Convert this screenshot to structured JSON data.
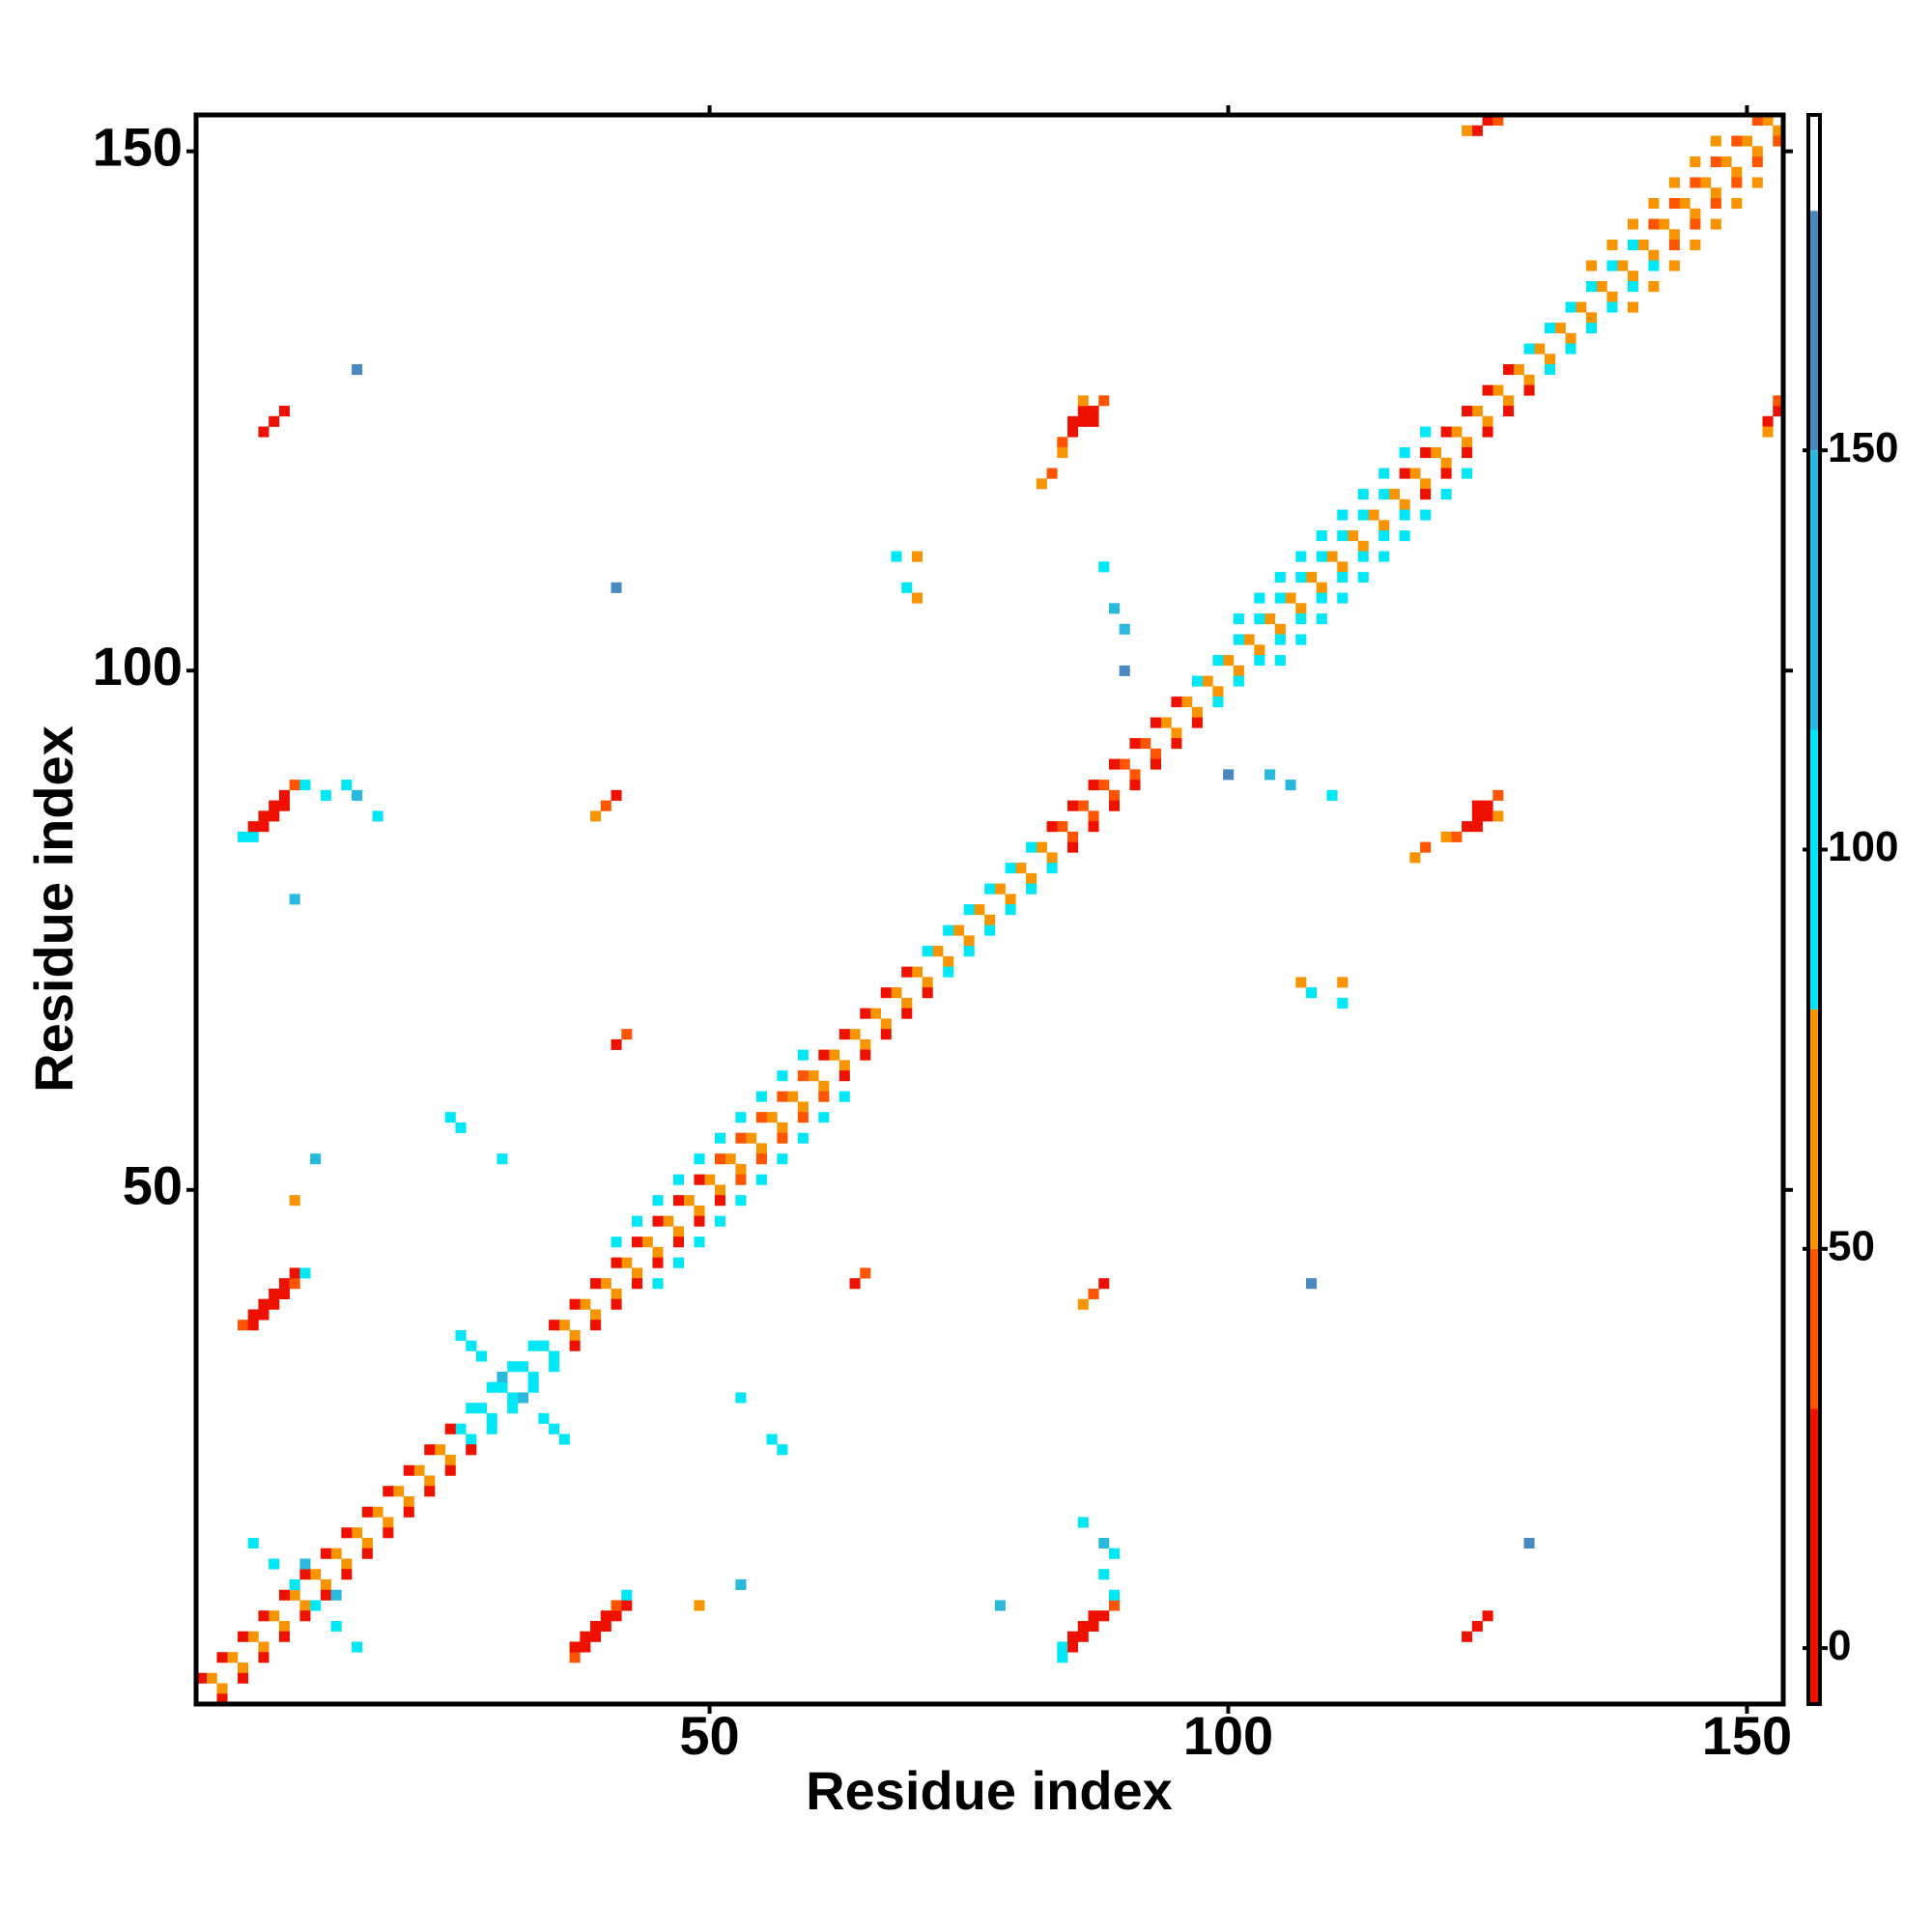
{
  "chart_data": {
    "type": "heatmap",
    "xlabel": "Residue index",
    "ylabel": "Residue index",
    "xlim": [
      0.5,
      153.5
    ],
    "ylim": [
      0.5,
      153.5
    ],
    "xticks": [
      50,
      100,
      150
    ],
    "yticks": [
      50,
      100,
      150
    ],
    "colorbar": {
      "lim": [
        -7,
        192
      ],
      "ticks": [
        0,
        50,
        100,
        150
      ],
      "bins": [
        {
          "from": -7,
          "to": 30,
          "color": "#ee1100"
        },
        {
          "from": 30,
          "to": 50,
          "color": "#ff5500"
        },
        {
          "from": 50,
          "to": 80,
          "color": "#f79400"
        },
        {
          "from": 80,
          "to": 115,
          "color": "#00e8f5"
        },
        {
          "from": 115,
          "to": 150,
          "color": "#2ab8dc"
        },
        {
          "from": 150,
          "to": 180,
          "color": "#4a88c0"
        },
        {
          "from": 180,
          "to": 192,
          "color": "#ffffff"
        }
      ]
    },
    "x": [
      2,
      4,
      6,
      8,
      10,
      12,
      14,
      16,
      18,
      20,
      22,
      24,
      26,
      28,
      30,
      32,
      34,
      36,
      38,
      40,
      42,
      44,
      46,
      48,
      50,
      52,
      54,
      56,
      58,
      60,
      62,
      64,
      66,
      68,
      70,
      72,
      74,
      76,
      78,
      80,
      82,
      84,
      86,
      88,
      90,
      92,
      94,
      96,
      98,
      100,
      102,
      104,
      106,
      108,
      110,
      112,
      114,
      116,
      118,
      120,
      122,
      124,
      126,
      128,
      130,
      132,
      134,
      136,
      138,
      140,
      142,
      144,
      146,
      148,
      150,
      152,
      3,
      5,
      7,
      9,
      11,
      13,
      15,
      17,
      19,
      21,
      23,
      25,
      27,
      29,
      31,
      33,
      35,
      37,
      39,
      41,
      43,
      45,
      47,
      49,
      51,
      53,
      55,
      57,
      59,
      61,
      63,
      65,
      67,
      69,
      71,
      73,
      75,
      77,
      79,
      81,
      83,
      85,
      87,
      89,
      91,
      93,
      95,
      97,
      99,
      101,
      103,
      105,
      107,
      109,
      111,
      113,
      115,
      117,
      119,
      121,
      123,
      125,
      127,
      129,
      131,
      133,
      135,
      137,
      139,
      141,
      143,
      145,
      147,
      149,
      151,
      153,
      1,
      3,
      5,
      7,
      9,
      11,
      13,
      15,
      17,
      19,
      21,
      23,
      25,
      27,
      29,
      31,
      33,
      35,
      37,
      39,
      41,
      43,
      45,
      47,
      49,
      51,
      53,
      55,
      57,
      59,
      61,
      63,
      65,
      67,
      69,
      71,
      73,
      75,
      77,
      79,
      81,
      83,
      85,
      87,
      89,
      91,
      93,
      95,
      97,
      99,
      101,
      103,
      105,
      107,
      109,
      111,
      113,
      115,
      117,
      119,
      121,
      123,
      125,
      127,
      129,
      131,
      133,
      135,
      137,
      139,
      141,
      143,
      145,
      147,
      149,
      151,
      3,
      5,
      7,
      9,
      11,
      13,
      15,
      17,
      19,
      21,
      23,
      25,
      27,
      29,
      31,
      33,
      35,
      37,
      39,
      41,
      43,
      45,
      47,
      49,
      51,
      53,
      55,
      57,
      59,
      61,
      63,
      65,
      67,
      69,
      71,
      73,
      75,
      77,
      79,
      81,
      83,
      85,
      87,
      89,
      91,
      93,
      95,
      97,
      99,
      101,
      103,
      105,
      107,
      109,
      111,
      113,
      115,
      117,
      119,
      121,
      123,
      125,
      127,
      129,
      131,
      133,
      135,
      137,
      139,
      141,
      143,
      145,
      147,
      149,
      151,
      153,
      41,
      43,
      45,
      47,
      49,
      51,
      53,
      55,
      57,
      59,
      101,
      103,
      105,
      107,
      109,
      111,
      113,
      115,
      117,
      119,
      135,
      137,
      139,
      141,
      143,
      145,
      147,
      45,
      47,
      49,
      51,
      53,
      55,
      57,
      59,
      61,
      63,
      105,
      107,
      109,
      111,
      113,
      115,
      117,
      119,
      121,
      123,
      139,
      141,
      143,
      145,
      147,
      149,
      151,
      5,
      6,
      6,
      7,
      7,
      8,
      8,
      9,
      9,
      10,
      10,
      11,
      5,
      6,
      6,
      7,
      7,
      8,
      8,
      9,
      9,
      10,
      11,
      13,
      84,
      85,
      85,
      86,
      86,
      87,
      87,
      88,
      84,
      82,
      83,
      86,
      124,
      125,
      126,
      123,
      7,
      8,
      9,
      41,
      40,
      39,
      41,
      42,
      15,
      16,
      18,
      10,
      16,
      41,
      68,
      69,
      70,
      70,
      89,
      90,
      90,
      88,
      25,
      26,
      30,
      12,
      10,
      28,
      27,
      26,
      30,
      12,
      14,
      16,
      14,
      37,
      37,
      38,
      38,
      39,
      39,
      40,
      40,
      41,
      41,
      42,
      42,
      84,
      84,
      85,
      85,
      86,
      86,
      87,
      87,
      88,
      89,
      89,
      88,
      122,
      123,
      124,
      124,
      125,
      124,
      125,
      126,
      121,
      118,
      119,
      126,
      152,
      153,
      153,
      152,
      123,
      124,
      125,
      88,
      87,
      86,
      64,
      65,
      89,
      88,
      86,
      78,
      129,
      108,
      111,
      108,
      111,
      107,
      106,
      104,
      100,
      110,
      57,
      56,
      53,
      53,
      49,
      34,
      35,
      36,
      32,
      10,
      8,
      6,
      11
    ],
    "y": [
      3,
      5,
      7,
      9,
      11,
      13,
      15,
      17,
      19,
      21,
      23,
      25,
      27,
      29,
      31,
      33,
      35,
      37,
      39,
      41,
      43,
      45,
      47,
      49,
      51,
      53,
      55,
      57,
      59,
      61,
      63,
      65,
      67,
      69,
      71,
      73,
      75,
      77,
      79,
      81,
      83,
      85,
      87,
      89,
      91,
      93,
      95,
      97,
      99,
      101,
      103,
      105,
      107,
      109,
      111,
      113,
      115,
      117,
      119,
      121,
      123,
      125,
      127,
      129,
      131,
      133,
      135,
      137,
      139,
      141,
      143,
      145,
      147,
      149,
      151,
      153,
      2,
      4,
      6,
      8,
      10,
      12,
      14,
      16,
      18,
      20,
      22,
      24,
      26,
      28,
      30,
      32,
      34,
      36,
      38,
      40,
      42,
      44,
      46,
      48,
      50,
      52,
      54,
      56,
      58,
      60,
      62,
      64,
      66,
      68,
      70,
      72,
      74,
      76,
      78,
      80,
      82,
      84,
      86,
      88,
      90,
      92,
      94,
      96,
      98,
      100,
      102,
      104,
      106,
      108,
      110,
      112,
      114,
      116,
      118,
      120,
      122,
      124,
      126,
      128,
      130,
      132,
      134,
      136,
      138,
      140,
      142,
      144,
      146,
      148,
      150,
      152,
      3,
      5,
      7,
      9,
      11,
      13,
      15,
      17,
      19,
      21,
      23,
      25,
      27,
      29,
      31,
      33,
      35,
      37,
      39,
      41,
      43,
      45,
      47,
      49,
      51,
      53,
      55,
      57,
      59,
      61,
      63,
      65,
      67,
      69,
      71,
      73,
      75,
      77,
      79,
      81,
      83,
      85,
      87,
      89,
      91,
      93,
      95,
      97,
      99,
      101,
      103,
      105,
      107,
      109,
      111,
      113,
      115,
      117,
      119,
      121,
      123,
      125,
      127,
      129,
      131,
      133,
      135,
      137,
      139,
      141,
      143,
      145,
      147,
      149,
      151,
      153,
      1,
      3,
      5,
      7,
      9,
      11,
      13,
      15,
      17,
      19,
      21,
      23,
      25,
      27,
      29,
      31,
      33,
      35,
      37,
      39,
      41,
      43,
      45,
      47,
      49,
      51,
      53,
      55,
      57,
      59,
      61,
      63,
      65,
      67,
      69,
      71,
      73,
      75,
      77,
      79,
      81,
      83,
      85,
      87,
      89,
      91,
      93,
      95,
      97,
      99,
      101,
      103,
      105,
      107,
      109,
      111,
      113,
      115,
      117,
      119,
      121,
      123,
      125,
      127,
      129,
      131,
      133,
      135,
      137,
      139,
      141,
      143,
      145,
      147,
      149,
      151,
      45,
      47,
      49,
      51,
      53,
      55,
      57,
      59,
      61,
      63,
      105,
      107,
      109,
      111,
      113,
      115,
      117,
      119,
      121,
      123,
      139,
      141,
      143,
      145,
      147,
      149,
      151,
      41,
      43,
      45,
      47,
      49,
      51,
      53,
      55,
      57,
      59,
      101,
      103,
      105,
      107,
      109,
      111,
      113,
      115,
      117,
      119,
      135,
      137,
      139,
      141,
      143,
      145,
      147,
      37,
      37,
      38,
      38,
      39,
      39,
      40,
      40,
      41,
      41,
      42,
      42,
      84,
      84,
      85,
      85,
      86,
      86,
      87,
      87,
      88,
      89,
      89,
      88,
      122,
      123,
      124,
      124,
      125,
      124,
      125,
      126,
      121,
      118,
      119,
      126,
      152,
      153,
      153,
      152,
      123,
      124,
      125,
      88,
      87,
      86,
      64,
      65,
      89,
      88,
      86,
      78,
      129,
      108,
      111,
      108,
      111,
      107,
      106,
      104,
      100,
      110,
      57,
      56,
      53,
      53,
      49,
      34,
      35,
      36,
      32,
      10,
      8,
      6,
      11,
      5,
      6,
      6,
      7,
      7,
      8,
      8,
      9,
      9,
      10,
      10,
      11,
      5,
      6,
      6,
      7,
      7,
      8,
      8,
      9,
      9,
      10,
      11,
      13,
      84,
      85,
      85,
      86,
      86,
      87,
      87,
      88,
      84,
      82,
      83,
      86,
      124,
      125,
      126,
      123,
      7,
      8,
      9,
      41,
      40,
      39,
      41,
      42,
      15,
      16,
      18,
      10,
      16,
      41,
      68,
      69,
      70,
      70,
      89,
      90,
      90,
      88,
      25,
      26,
      30,
      12,
      10,
      28,
      27,
      26,
      30,
      12,
      14,
      16,
      14
    ],
    "values": [
      65,
      65,
      65,
      65,
      65,
      65,
      65,
      65,
      65,
      65,
      65,
      65,
      95,
      95,
      95,
      95,
      95,
      65,
      65,
      65,
      65,
      65,
      65,
      65,
      65,
      65,
      65,
      65,
      65,
      65,
      65,
      65,
      65,
      65,
      65,
      65,
      65,
      65,
      65,
      65,
      65,
      40,
      40,
      40,
      40,
      40,
      65,
      65,
      65,
      65,
      65,
      65,
      65,
      65,
      65,
      65,
      65,
      65,
      65,
      65,
      65,
      65,
      65,
      65,
      65,
      65,
      65,
      65,
      65,
      65,
      65,
      65,
      65,
      65,
      65,
      65,
      65,
      65,
      65,
      65,
      65,
      65,
      65,
      65,
      65,
      65,
      65,
      65,
      95,
      95,
      95,
      95,
      95,
      65,
      65,
      65,
      65,
      65,
      65,
      65,
      65,
      65,
      65,
      65,
      65,
      65,
      65,
      65,
      65,
      65,
      65,
      65,
      65,
      65,
      65,
      65,
      65,
      40,
      40,
      40,
      40,
      40,
      65,
      65,
      65,
      65,
      65,
      65,
      65,
      65,
      65,
      65,
      65,
      65,
      65,
      65,
      65,
      65,
      65,
      65,
      65,
      65,
      65,
      65,
      65,
      65,
      65,
      65,
      65,
      65,
      65,
      65,
      10,
      10,
      10,
      10,
      10,
      10,
      10,
      10,
      10,
      10,
      10,
      10,
      10,
      95,
      95,
      95,
      95,
      10,
      10,
      10,
      10,
      10,
      10,
      10,
      10,
      40,
      40,
      40,
      40,
      40,
      10,
      10,
      10,
      10,
      10,
      95,
      95,
      95,
      95,
      95,
      95,
      10,
      10,
      10,
      10,
      10,
      10,
      10,
      95,
      95,
      95,
      95,
      95,
      95,
      95,
      95,
      95,
      95,
      10,
      10,
      10,
      10,
      10,
      10,
      95,
      95,
      95,
      95,
      95,
      95,
      40,
      40,
      40,
      40,
      40,
      40,
      10,
      10,
      10,
      10,
      10,
      10,
      10,
      10,
      10,
      10,
      10,
      10,
      10,
      95,
      95,
      95,
      95,
      10,
      10,
      10,
      10,
      10,
      10,
      10,
      10,
      40,
      40,
      40,
      40,
      40,
      10,
      10,
      10,
      10,
      10,
      95,
      95,
      95,
      95,
      95,
      95,
      10,
      10,
      10,
      10,
      10,
      10,
      10,
      95,
      95,
      95,
      95,
      95,
      95,
      95,
      95,
      95,
      95,
      10,
      10,
      10,
      10,
      10,
      10,
      95,
      95,
      95,
      95,
      95,
      95,
      40,
      40,
      40,
      40,
      40,
      40,
      95,
      95,
      95,
      95,
      95,
      95,
      95,
      95,
      95,
      95,
      95,
      95,
      95,
      95,
      95,
      95,
      95,
      95,
      95,
      95,
      65,
      65,
      65,
      65,
      65,
      65,
      65,
      95,
      95,
      95,
      95,
      95,
      95,
      95,
      95,
      95,
      95,
      95,
      95,
      95,
      95,
      95,
      95,
      95,
      95,
      95,
      95,
      65,
      65,
      65,
      65,
      65,
      65,
      65,
      40,
      10,
      10,
      10,
      10,
      10,
      10,
      10,
      10,
      40,
      10,
      95,
      95,
      95,
      10,
      10,
      10,
      10,
      10,
      10,
      10,
      40,
      95,
      95,
      40,
      10,
      10,
      10,
      10,
      10,
      10,
      40,
      65,
      65,
      40,
      65,
      10,
      10,
      40,
      65,
      10,
      10,
      10,
      10,
      40,
      65,
      10,
      40,
      95,
      130,
      95,
      130,
      165,
      165,
      95,
      95,
      65,
      65,
      130,
      130,
      165,
      95,
      95,
      95,
      95,
      130,
      65,
      95,
      95,
      95,
      130,
      95,
      95,
      95,
      130,
      40,
      10,
      10,
      10,
      10,
      10,
      10,
      10,
      10,
      40,
      10,
      95,
      95,
      95,
      10,
      10,
      10,
      10,
      10,
      10,
      10,
      40,
      95,
      95,
      40,
      10,
      10,
      10,
      10,
      10,
      10,
      40,
      65,
      65,
      40,
      65,
      10,
      10,
      40,
      65,
      10,
      10,
      10,
      10,
      40,
      65,
      10,
      40,
      95,
      130,
      95,
      130,
      165,
      165,
      95,
      95,
      65,
      65,
      130,
      130,
      165,
      95,
      95,
      95,
      95,
      130,
      65,
      95,
      95,
      95,
      130,
      95,
      95,
      95,
      130
    ]
  }
}
